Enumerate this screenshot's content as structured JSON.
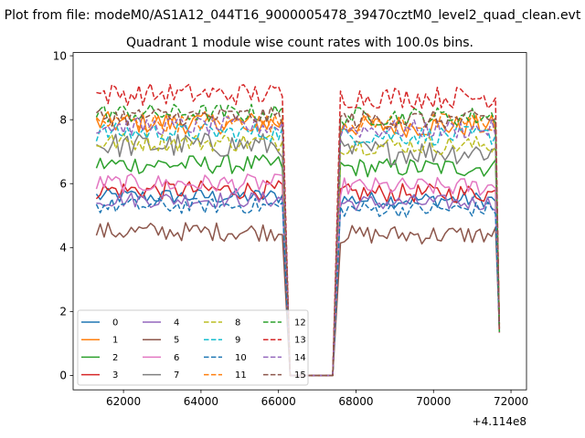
{
  "chart_data": {
    "type": "line",
    "suptitle": "Plot from file: modeM0/AS1A12_044T16_9000005478_39470cztM0_level2_quad_clean.evt",
    "title": "Quadrant 1 module wise count rates with 100.0s bins.",
    "xlabel": "",
    "ylabel": "",
    "x_offset_label": "+4.114e8",
    "xlim": [
      60700,
      72400
    ],
    "ylim": [
      -0.45,
      10.1
    ],
    "xticks": [
      62000,
      64000,
      66000,
      68000,
      70000,
      72000
    ],
    "yticks": [
      0,
      2,
      4,
      6,
      8,
      10
    ],
    "grid": false,
    "legend_position": "lower-left",
    "legend_columns": 4,
    "segments": {
      "first": {
        "start": 61300,
        "end": 66100
      },
      "drop_end": 66300,
      "zero_end": 67400,
      "rise_end": 67600,
      "second": {
        "start": 67600,
        "end": 71700
      },
      "bin": 100
    },
    "series": [
      {
        "name": "0",
        "color": "#1f77b4",
        "style": "solid",
        "base1": 5.6,
        "base2": 5.5,
        "amp": 0.25
      },
      {
        "name": "1",
        "color": "#ff7f0e",
        "style": "solid",
        "base1": 7.9,
        "base2": 7.8,
        "amp": 0.35
      },
      {
        "name": "2",
        "color": "#2ca02c",
        "style": "solid",
        "base1": 6.6,
        "base2": 6.5,
        "amp": 0.3
      },
      {
        "name": "3",
        "color": "#d62728",
        "style": "solid",
        "base1": 5.8,
        "base2": 5.7,
        "amp": 0.3
      },
      {
        "name": "4",
        "color": "#9467bd",
        "style": "solid",
        "base1": 5.5,
        "base2": 5.4,
        "amp": 0.25
      },
      {
        "name": "5",
        "color": "#8c564b",
        "style": "solid",
        "base1": 4.5,
        "base2": 4.4,
        "amp": 0.3
      },
      {
        "name": "6",
        "color": "#e377c2",
        "style": "solid",
        "base1": 6.0,
        "base2": 5.9,
        "amp": 0.3
      },
      {
        "name": "7",
        "color": "#7f7f7f",
        "style": "solid",
        "base1": 7.2,
        "base2": 7.0,
        "amp": 0.4
      },
      {
        "name": "8",
        "color": "#bcbd22",
        "style": "dashed",
        "base1": 7.3,
        "base2": 7.2,
        "amp": 0.3
      },
      {
        "name": "9",
        "color": "#17becf",
        "style": "dashed",
        "base1": 7.6,
        "base2": 7.5,
        "amp": 0.3
      },
      {
        "name": "10",
        "color": "#1f77b4",
        "style": "dashed",
        "base1": 5.3,
        "base2": 5.2,
        "amp": 0.25
      },
      {
        "name": "11",
        "color": "#ff7f0e",
        "style": "dashed",
        "base1": 7.9,
        "base2": 7.9,
        "amp": 0.3
      },
      {
        "name": "12",
        "color": "#2ca02c",
        "style": "dashed",
        "base1": 8.2,
        "base2": 8.1,
        "amp": 0.3
      },
      {
        "name": "13",
        "color": "#d62728",
        "style": "dashed",
        "base1": 8.8,
        "base2": 8.7,
        "amp": 0.35
      },
      {
        "name": "14",
        "color": "#9467bd",
        "style": "dashed",
        "base1": 7.8,
        "base2": 7.7,
        "amp": 0.3
      },
      {
        "name": "15",
        "color": "#8c564b",
        "style": "dashed",
        "base1": 8.1,
        "base2": 8.0,
        "amp": 0.3
      }
    ]
  }
}
